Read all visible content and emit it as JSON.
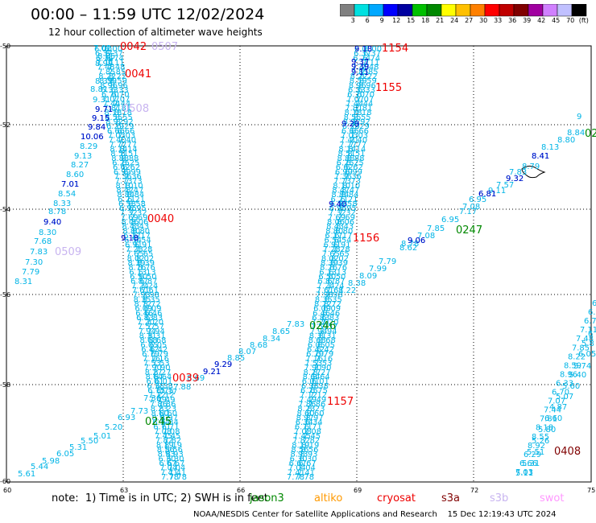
{
  "title": "00:00 – 11:59 UTC 12/02/2024",
  "subtitle": "12 hour collection of altimeter wave heights",
  "colorbar": {
    "colors": [
      "#808080",
      "#00e0e0",
      "#00a8ff",
      "#0000ff",
      "#0000a0",
      "#00c000",
      "#008800",
      "#ffff00",
      "#ffc000",
      "#ff8000",
      "#ff0000",
      "#c00000",
      "#800000",
      "#a000a0",
      "#d080ff",
      "#c0c0ff",
      "#000000"
    ],
    "labels": [
      "3",
      "6",
      "9",
      "12",
      "15",
      "18",
      "21",
      "24",
      "27",
      "30",
      "33",
      "36",
      "39",
      "42",
      "45",
      "70",
      "(ft)"
    ]
  },
  "axes": {
    "lon_ticks": [
      "60",
      "63",
      "66",
      "69",
      "72",
      "75"
    ],
    "lat_ticks": [
      "-50",
      "-52",
      "-54",
      "-56",
      "-58",
      "-60"
    ]
  },
  "pass_labels": [
    {
      "text": "0042",
      "color": "#ee0000"
    },
    {
      "text": "0507",
      "color": "#c8b4f0"
    },
    {
      "text": "0041",
      "color": "#ee0000"
    },
    {
      "text": "0508",
      "color": "#c8b4f0"
    },
    {
      "text": "0040",
      "color": "#ee0000"
    },
    {
      "text": "0509",
      "color": "#c8b4f0"
    },
    {
      "text": "0039",
      "color": "#ee0000"
    },
    {
      "text": "0245",
      "color": "#008800"
    },
    {
      "text": "0246",
      "color": "#008800"
    },
    {
      "text": "0247",
      "color": "#008800"
    },
    {
      "text": "02",
      "color": "#008800"
    },
    {
      "text": "1154",
      "color": "#ee0000"
    },
    {
      "text": "1155",
      "color": "#ee0000"
    },
    {
      "text": "1156",
      "color": "#ee0000"
    },
    {
      "text": "1157",
      "color": "#ee0000"
    },
    {
      "text": "0408",
      "color": "#800000"
    }
  ],
  "wave_values": {
    "light": "#00b4e6",
    "dark": "#0000c8",
    "track_a": [
      "7.02",
      "8.85",
      "8.99",
      "8.39",
      "9.31",
      "8.81"
    ],
    "track_b": [
      "9.71",
      "9.15",
      "9.84",
      "10.06",
      "8.29",
      "9.13",
      "8.27",
      "8.60",
      "7.01",
      "8.54",
      "8.33",
      "8.78",
      "9.40",
      "8.30",
      "7.68",
      "7.83",
      "7.30",
      "7.79",
      "8.31"
    ],
    "track_c": [
      "9.18"
    ],
    "track_f": [
      "9.18",
      "9.37",
      "9.39",
      "9.11",
      "9.29",
      "9.40"
    ],
    "track_d": [
      "5.61",
      "5.44",
      "5.98",
      "6.05",
      "5.31",
      "5.50",
      "5.01",
      "5.20",
      "6.93",
      "7.73",
      "7.36",
      "7.37",
      "7.88",
      "8.69",
      "9.21",
      "9.29",
      "8.85",
      "8.07",
      "8.68",
      "8.34",
      "8.65",
      "7.83"
    ],
    "track_e": [
      "8.22",
      "8.38",
      "8.09",
      "7.99",
      "7.79",
      "8.62",
      "8.78",
      "9.06",
      "7.08",
      "7.85",
      "6.95",
      "7.17",
      "7.08",
      "6.95",
      "6.81",
      "9.11",
      "7.57",
      "9.32",
      "7.83",
      "8.79",
      "8.41",
      "8.13",
      "8.80",
      "8.84",
      "9"
    ],
    "track_g": [
      "5.11",
      "5.31",
      "5.51",
      "5.26",
      "5.80",
      "6.60",
      "4.87",
      "5.07",
      "5.60",
      "5.40",
      "5.74",
      "6.05",
      "5.8",
      "6"
    ]
  },
  "note": "note:  1) Time is in UTC; 2) SWH is in feet",
  "legend": [
    {
      "text": "jason3",
      "color": "#008800"
    },
    {
      "text": "altiko",
      "color": "#ff9900"
    },
    {
      "text": "cryosat",
      "color": "#ee0000"
    },
    {
      "text": "s3a",
      "color": "#800000"
    },
    {
      "text": "s3b",
      "color": "#c8b4f0"
    },
    {
      "text": "swot",
      "color": "#ff99ff"
    }
  ],
  "credit": "NOAA/NESDIS Center for Satellite Applications and Research    15 Dec 12:19:43 UTC 2024"
}
